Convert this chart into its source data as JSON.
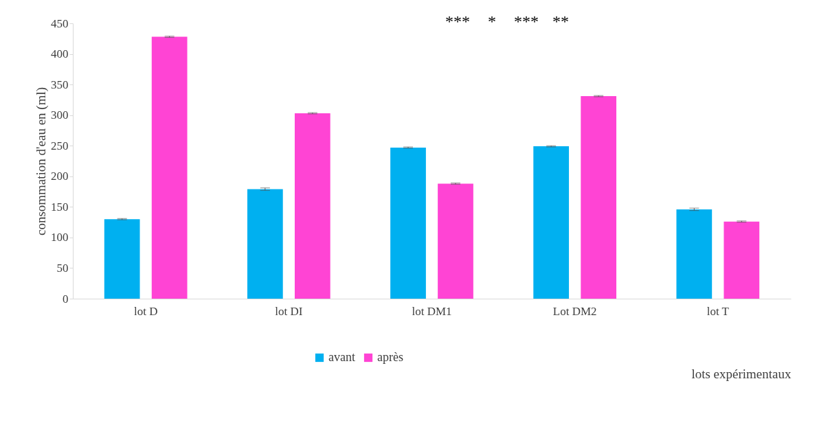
{
  "chart_data": {
    "type": "bar",
    "xlabel": "lots expérimentaux",
    "ylabel": "consommation d'eau en (ml)",
    "categories": [
      "lot D",
      "lot DI",
      "lot DM1",
      "Lot DM2",
      "lot T"
    ],
    "series": [
      {
        "name": "avant",
        "color": "#00b0f0",
        "values": [
          130,
          179,
          247,
          249,
          146
        ],
        "errors": [
          1,
          2,
          1,
          1,
          2
        ]
      },
      {
        "name": "après",
        "color": "#ff44d4",
        "values": [
          428,
          303,
          188,
          331,
          126
        ],
        "errors": [
          1,
          1,
          1,
          1,
          1
        ]
      }
    ],
    "ylim": [
      0,
      450
    ],
    "yticks": [
      0,
      50,
      100,
      150,
      200,
      250,
      300,
      350,
      400,
      450
    ],
    "grid": false,
    "legend": "bottom",
    "annotations": [
      "***",
      "*",
      "***",
      "**"
    ]
  }
}
